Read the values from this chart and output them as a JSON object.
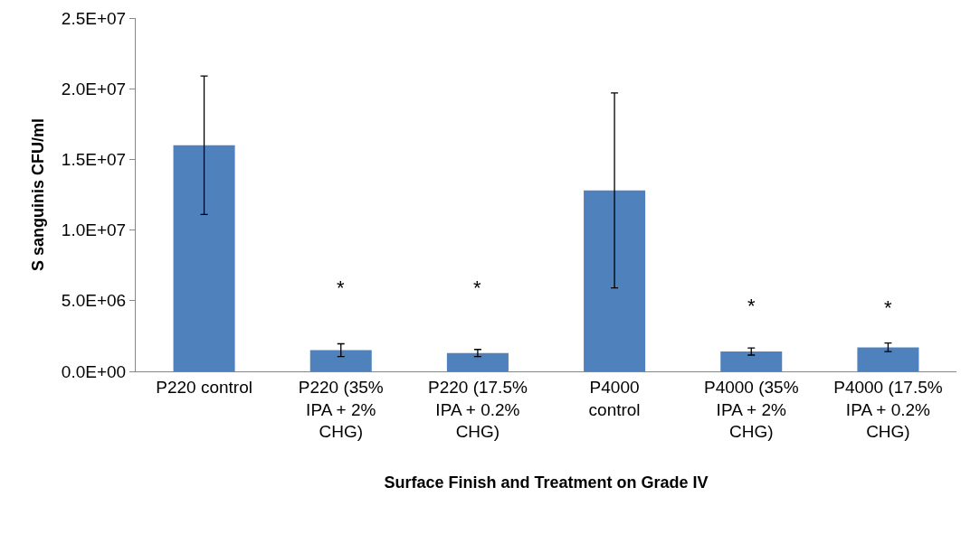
{
  "chart_data": {
    "type": "bar",
    "xlabel": "Surface Finish and Treatment on Grade IV",
    "ylabel": "S sanguinis CFU/ml",
    "categories": [
      "P220 control",
      "P220 (35% IPA + 2% CHG)",
      "P220 (17.5% IPA + 0.2% CHG)",
      "P4000 control",
      "P4000 (35% IPA + 2% CHG)",
      "P4000 (17.5% IPA + 0.2% CHG)"
    ],
    "values": [
      16000000.0,
      1500000.0,
      1300000.0,
      12800000.0,
      1400000.0,
      1700000.0
    ],
    "errors": [
      4900000.0,
      450000.0,
      250000.0,
      6900000.0,
      250000.0,
      300000.0
    ],
    "color": "#4f81bd",
    "ylim": [
      0,
      25000000.0
    ],
    "yticks": [
      {
        "value": 0,
        "label": "0.0E+00"
      },
      {
        "value": 5000000.0,
        "label": "5.0E+06"
      },
      {
        "value": 10000000.0,
        "label": "1.0E+07"
      },
      {
        "value": 15000000.0,
        "label": "1.5E+07"
      },
      {
        "value": 20000000.0,
        "label": "2.0E+07"
      },
      {
        "value": 25000000.0,
        "label": "2.5E+07"
      }
    ],
    "grid": false,
    "legend": false,
    "annotations": [
      "*",
      "*",
      "*",
      "*"
    ]
  }
}
